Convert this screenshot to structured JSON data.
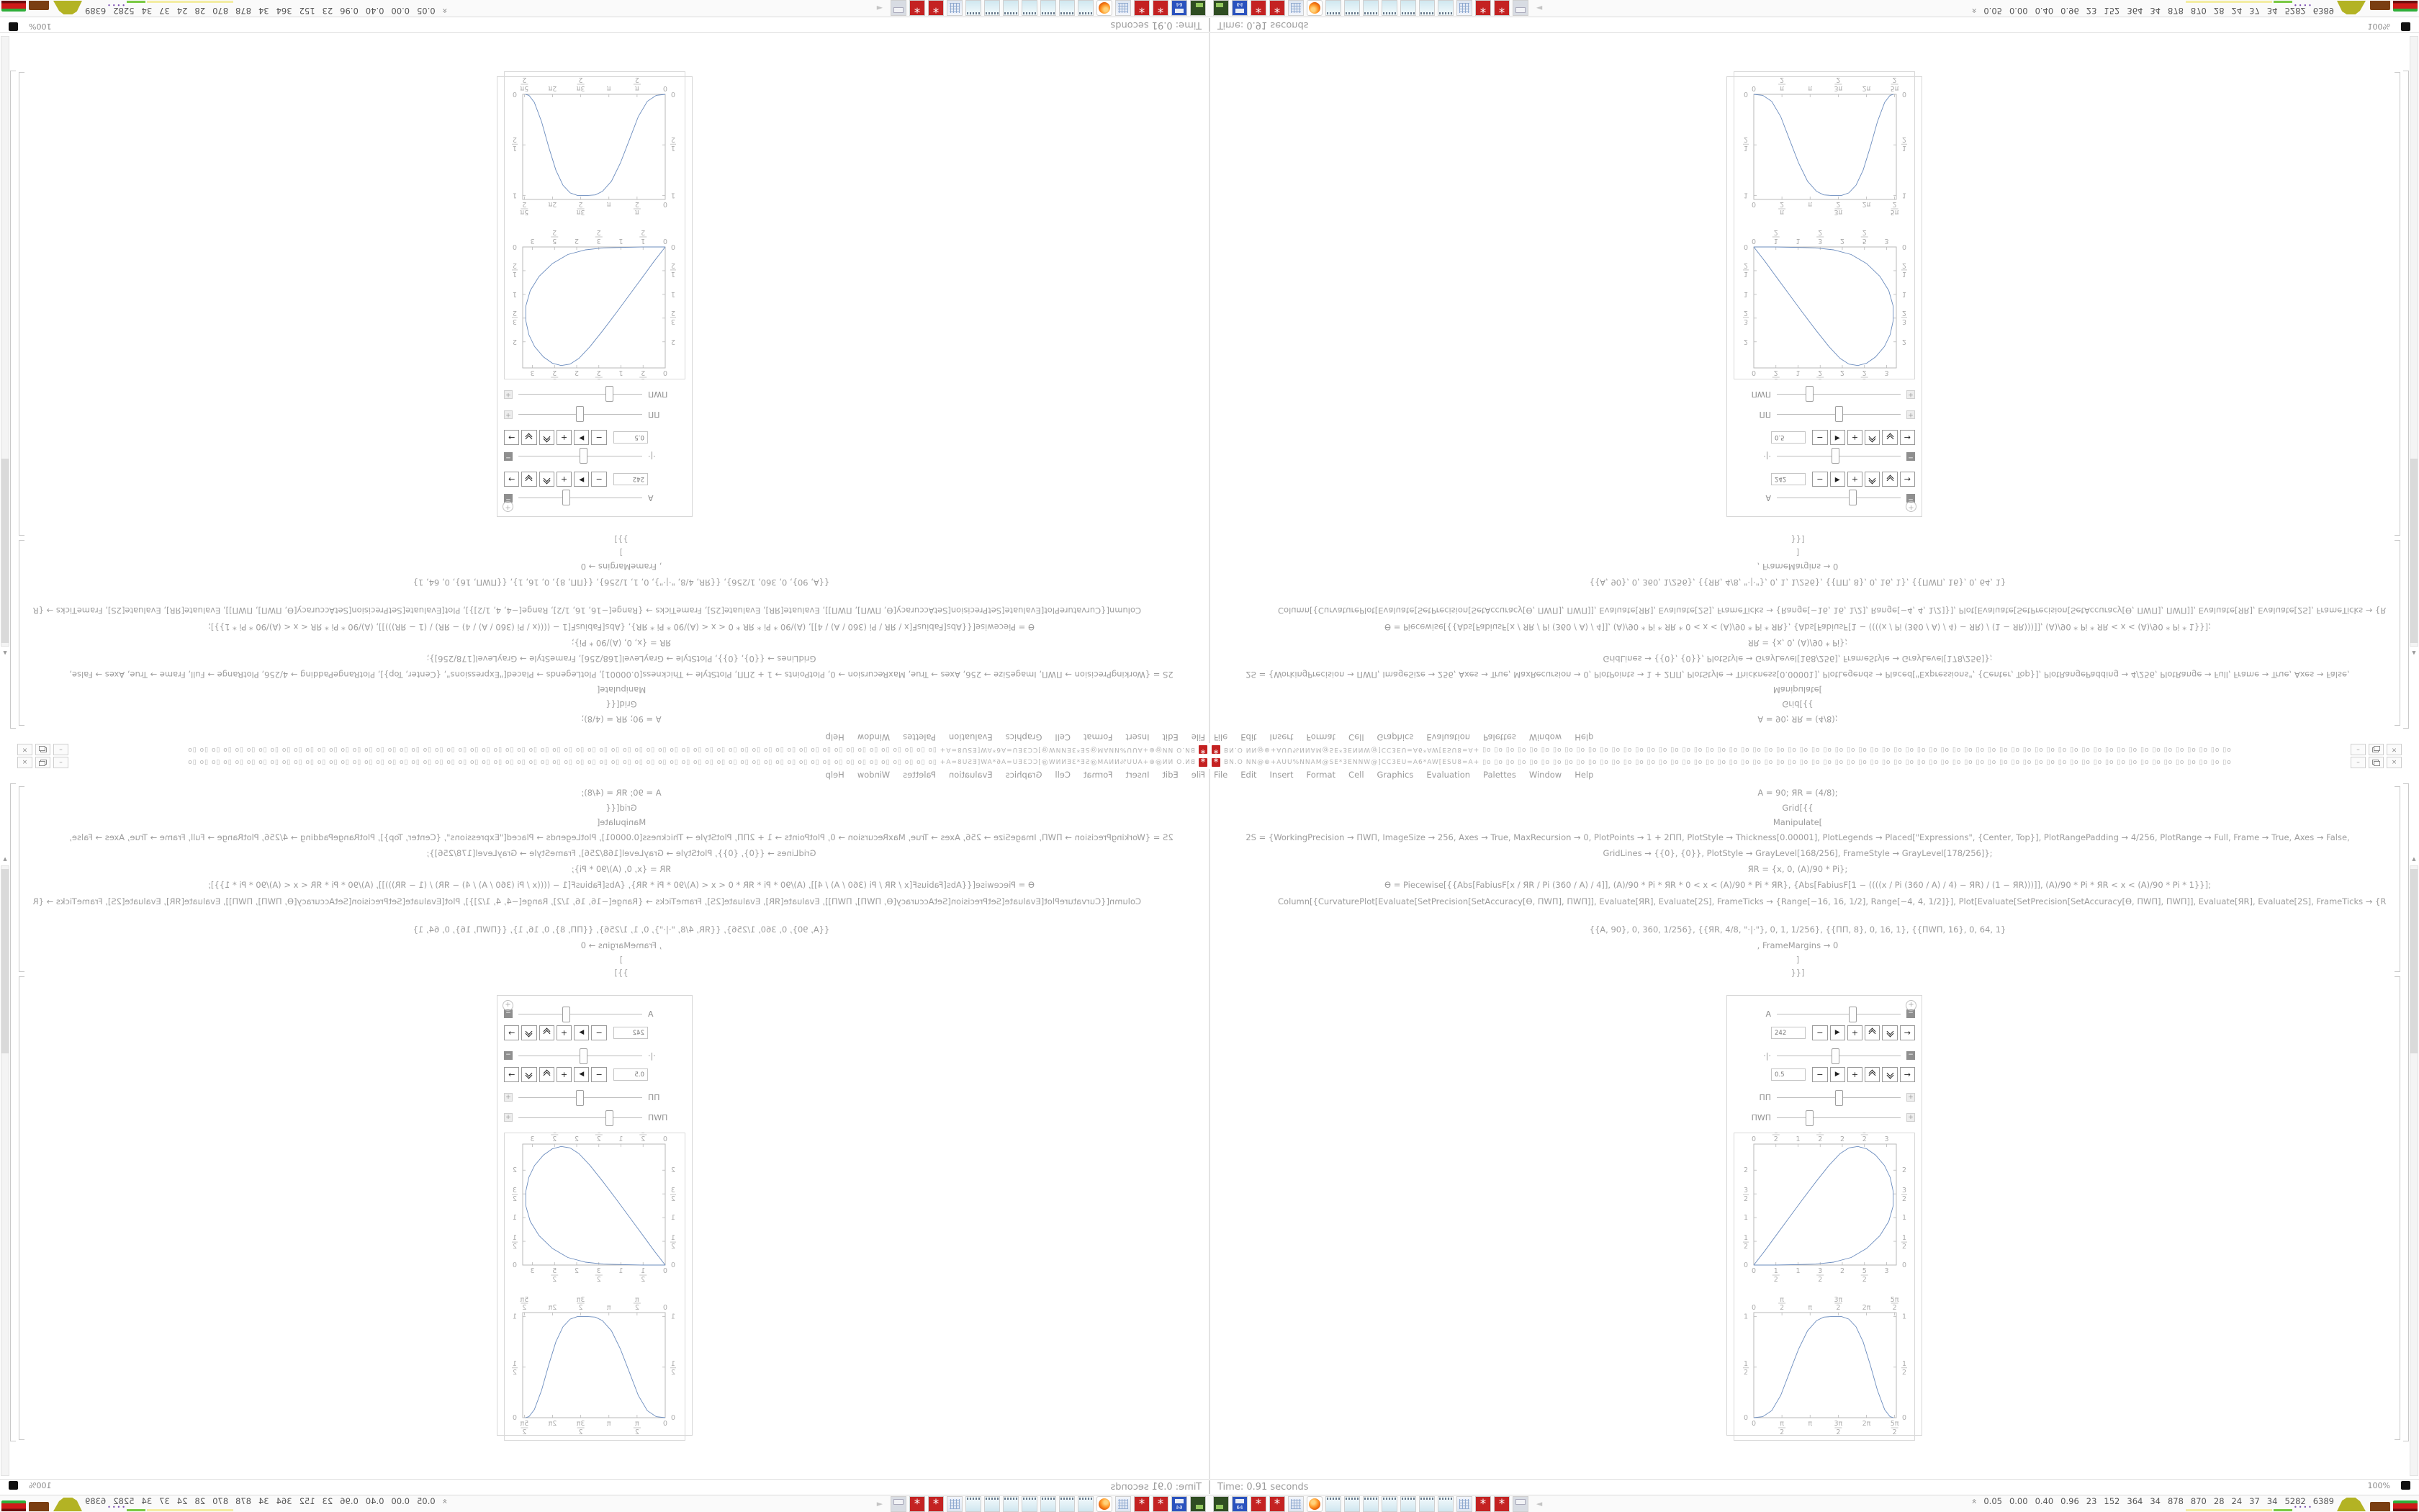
{
  "window": {
    "title_head": "BN.O NN@⊕+AUU%NNAM@SE*3ENNW@]CC3EU=A6*AW[ESU8=A+",
    "title_pattern": "▯o ",
    "title_repeat": 64,
    "menu": [
      "File",
      "Edit",
      "Insert",
      "Format",
      "Cell",
      "Graphics",
      "Evaluation",
      "Palettes",
      "Window",
      "Help"
    ],
    "buttons": {
      "minimize_glyph": "–",
      "close_glyph": "×"
    },
    "scroll_up_glyph": "▲"
  },
  "status_bar": {
    "time_label": "Time: 0.91 seconds"
  },
  "notebook": {
    "code_lines": [
      {
        "t": "A = 90; ЯR = (4/8);",
        "cls": ""
      },
      {
        "t": "Grid[{{",
        "cls": "sm"
      },
      {
        "t": "Manipulate[",
        "cls": "sm"
      },
      {
        "t": "2S = {WorkingPrecision → ΠWΠ, ImageSize → 256, Axes → True, MaxRecursion → 0, PlotPoints → 1 + 2ΠΠ, PlotStyle → Thickness[0.00001], PlotLegends → Placed[\"Expressions\", {Center, Top}], PlotRangePadding → 4/256, PlotRange → Full, Frame → True, Axes → False,",
        "cls": ""
      },
      {
        "t": "GridLines → {{0}, {0}}, PlotStyle → GrayLevel[168/256], FrameStyle → GrayLevel[178/256]};",
        "cls": ""
      },
      {
        "t": "ЯR = {x, 0, (A)/90 * Pi};",
        "cls": ""
      },
      {
        "t": "Ө = Piecewise[{{Abs[FabiusF[x / ЯR / Pi (360 / A) / 4]], (A)/90 * Pi * ЯR * 0 < x < (A)/90 * Pi * ЯR}, {Abs[FabiusF[1 − ((((x / Pi (360 / A) / 4) − ЯR) / (1 − ЯR)))]], (A)/90 * Pi * ЯR < x < (A)/90 * Pi * 1}}];",
        "cls": ""
      },
      {
        "t": "Column[{CurvaturePlot[Evaluate[SetPrecision[SetAccuracy[Ө, ΠWΠ], ΠWΠ]], Evaluate[ЯR], Evaluate[2S], FrameTicks → {Range[−16, 16, 1/2], Range[−4, 4, 1/2]}], Plot[Evaluate[SetPrecision[SetAccuracy[Ө, ΠWΠ], ΠWΠ]], Evaluate[ЯR], Evaluate[2S], FrameTicks → {Range[−16 * Pi, 16 * Pi, Pi / 2], Range[−1, 1, 1/2]} ]}]",
        "cls": "full"
      },
      {
        "t": "{{A, 90}, 0, 360, 1/256}, {{ЯR, 4/8, \"·|·\"}, 0, 1, 1/256}, {{ΠΠ, 8}, 0, 16, 1}, {{ΠWΠ, 16}, 0, 64, 1}",
        "cls": "gap"
      },
      {
        "t": ", FrameMargins → 0",
        "cls": ""
      },
      {
        "t": "]",
        "cls": "tiny"
      },
      {
        "t": "}}]",
        "cls": "tiny"
      }
    ]
  },
  "manipulate": {
    "icons": {
      "minus": "−",
      "play": "▶",
      "plus": "+",
      "arrow": "→"
    },
    "sliders": [
      {
        "label": "A",
        "pos_pct": 58,
        "toggle": "−"
      },
      {
        "label": "·|·",
        "pos_pct": 44,
        "toggle": "−"
      },
      {
        "label": "ΠΠ",
        "pos_pct": 47,
        "toggle": "+"
      },
      {
        "label": "ΠWΠ",
        "pos_pct": 23,
        "toggle": "+"
      }
    ],
    "steppers": [
      {
        "value": "242"
      },
      {
        "value": "0.5"
      }
    ]
  },
  "chart_data": [
    {
      "type": "line",
      "name": "curvature-plot",
      "title": "",
      "xlim": [
        0,
        3.22
      ],
      "ylim": [
        0,
        2.55
      ],
      "xtick_values": [
        0,
        0.5,
        1,
        1.5,
        2,
        2.5,
        3
      ],
      "xtick_labels": [
        "0",
        "1/2",
        "1",
        "3/2",
        "2",
        "5/2",
        "3"
      ],
      "ytick_values": [
        0,
        0.5,
        1,
        1.5,
        2
      ],
      "ytick_labels": [
        "0",
        "1/2",
        "1",
        "3/2",
        "2"
      ],
      "line_color": "#6b8cbe",
      "points": [
        [
          0,
          0
        ],
        [
          0.25,
          0.3
        ],
        [
          0.5,
          0.62
        ],
        [
          0.8,
          1.0
        ],
        [
          1.1,
          1.38
        ],
        [
          1.4,
          1.75
        ],
        [
          1.7,
          2.1
        ],
        [
          1.95,
          2.35
        ],
        [
          2.15,
          2.47
        ],
        [
          2.35,
          2.5
        ],
        [
          2.55,
          2.45
        ],
        [
          2.75,
          2.32
        ],
        [
          2.95,
          2.1
        ],
        [
          3.08,
          1.85
        ],
        [
          3.15,
          1.55
        ],
        [
          3.15,
          1.25
        ],
        [
          3.05,
          0.92
        ],
        [
          2.85,
          0.62
        ],
        [
          2.55,
          0.35
        ],
        [
          2.2,
          0.16
        ],
        [
          1.8,
          0.06
        ],
        [
          1.4,
          0.02
        ],
        [
          1.0,
          0.01
        ],
        [
          0.5,
          0.0
        ],
        [
          0,
          0
        ]
      ]
    },
    {
      "type": "line",
      "name": "fabius-plot",
      "title": "",
      "xlim": [
        0,
        7.95
      ],
      "ylim": [
        0,
        1.04
      ],
      "xtick_values": [
        0,
        1.5708,
        3.1416,
        4.7124,
        6.2832,
        7.854
      ],
      "xtick_labels": [
        "0",
        "π/2",
        "π",
        "3π/2",
        "2π",
        "5π/2"
      ],
      "ytick_values": [
        0,
        0.5,
        1
      ],
      "ytick_labels": [
        "0",
        "1/2",
        "1"
      ],
      "line_color": "#6b8cbe",
      "points": [
        [
          0,
          0
        ],
        [
          0.5,
          0.01
        ],
        [
          1.0,
          0.07
        ],
        [
          1.5,
          0.22
        ],
        [
          2.0,
          0.45
        ],
        [
          2.5,
          0.68
        ],
        [
          3.0,
          0.86
        ],
        [
          3.5,
          0.96
        ],
        [
          3.9,
          0.995
        ],
        [
          4.3,
          1.0
        ],
        [
          4.9,
          1.0
        ],
        [
          5.3,
          0.975
        ],
        [
          5.7,
          0.9
        ],
        [
          6.1,
          0.75
        ],
        [
          6.5,
          0.52
        ],
        [
          6.9,
          0.27
        ],
        [
          7.3,
          0.08
        ],
        [
          7.6,
          0.01
        ],
        [
          7.8,
          0
        ]
      ]
    }
  ],
  "taskbar": {
    "icons": [
      "terminal",
      "floppy64",
      "gear",
      "gear",
      "calc",
      "firefox",
      "notepad",
      "notepad",
      "notepad",
      "notepad",
      "notepad",
      "notepad",
      "notepad",
      "calc",
      "gear",
      "gear",
      "printer",
      "speaker"
    ],
    "floppy_label": "64",
    "sysmon": {
      "expand_glyph": "«",
      "values": [
        "0.05",
        "0.00",
        "0.40",
        "0.96",
        "23",
        "152",
        "364",
        "34",
        "878",
        "870",
        "28",
        "24",
        "37",
        "34",
        "5282",
        "6389"
      ],
      "battery_label": "100%"
    }
  }
}
